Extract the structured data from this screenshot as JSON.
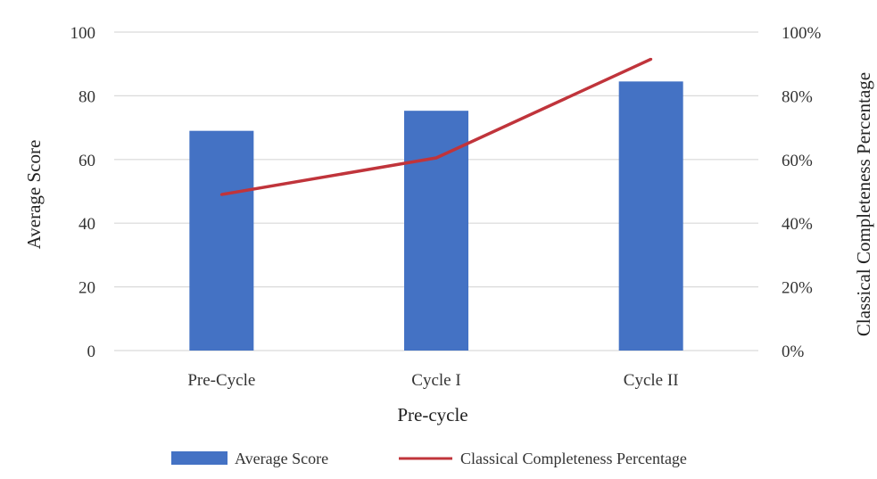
{
  "chart_data": {
    "type": "bar",
    "categories": [
      "Pre-Cycle",
      "Cycle I",
      "Cycle II"
    ],
    "series": [
      {
        "name": "Average Score",
        "type": "bar",
        "axis": "left",
        "values": [
          69,
          75.3,
          84.5
        ]
      },
      {
        "name": "Classical Completeness Percentage",
        "type": "line",
        "axis": "right",
        "values": [
          49,
          60.5,
          91.5
        ]
      }
    ],
    "title": "",
    "xlabel": "Pre-cycle",
    "ylabel": "Average Score",
    "y2label": "Classical Completeness Percentage",
    "ylim": [
      0,
      100
    ],
    "y2lim": [
      0,
      100
    ],
    "yticks": [
      "0",
      "20",
      "40",
      "60",
      "80",
      "100"
    ],
    "y2ticks": [
      "0%",
      "20%",
      "40%",
      "60%",
      "80%",
      "100%"
    ],
    "grid": true,
    "legend": "bottom"
  },
  "colors": {
    "bar": "#4472c4",
    "line": "#c0343b",
    "grid": "#d9d9d9"
  }
}
